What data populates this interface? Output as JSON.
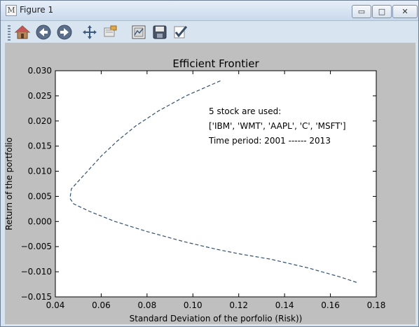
{
  "window": {
    "title": "Figure 1",
    "controls": {
      "minimize": "▭",
      "maximize": "□",
      "close": "✕"
    }
  },
  "toolbar": {
    "tools": [
      {
        "name": "home-icon"
      },
      {
        "name": "back-arrow-icon"
      },
      {
        "name": "forward-arrow-icon"
      },
      {
        "name": "pan-icon"
      },
      {
        "name": "zoom-icon"
      },
      {
        "name": "subplots-config-icon"
      },
      {
        "name": "save-icon"
      },
      {
        "name": "edit-parameters-icon"
      }
    ]
  },
  "colors": {
    "figure_background": "#bfbfbf",
    "axes_background": "#ffffff",
    "line": "#34506c"
  },
  "chart_data": {
    "type": "line",
    "title": "Efficient Frontier",
    "xlabel": "Standard Deviation of the porfolio (Risk))",
    "ylabel": "Return of the portfolio",
    "xlim": [
      0.04,
      0.18
    ],
    "ylim": [
      -0.015,
      0.03
    ],
    "xticks": [
      "0.04",
      "0.06",
      "0.08",
      "0.10",
      "0.12",
      "0.14",
      "0.16",
      "0.18"
    ],
    "yticks": [
      "0.030",
      "0.025",
      "0.020",
      "0.015",
      "0.010",
      "0.005",
      "0.000",
      "−0.005",
      "−0.010",
      "−0.015"
    ],
    "grid": false,
    "line_style": "dashed",
    "annotation": [
      "5 stock are used:",
      " ['IBM', 'WMT', 'AAPL', 'C', 'MSFT']",
      "Time period: 2001 ------ 2013"
    ],
    "series": [
      {
        "x": [
          0.112,
          0.097,
          0.085,
          0.075,
          0.067,
          0.06,
          0.054,
          0.05,
          0.047,
          0.0465,
          0.0465,
          0.048,
          0.055,
          0.066,
          0.08,
          0.096,
          0.11,
          0.121,
          0.134,
          0.15,
          0.164,
          0.172
        ],
        "y": [
          0.028,
          0.025,
          0.022,
          0.019,
          0.016,
          0.013,
          0.01,
          0.008,
          0.0065,
          0.005,
          0.0045,
          0.0035,
          0.002,
          0.0,
          -0.002,
          -0.004,
          -0.0055,
          -0.0065,
          -0.0075,
          -0.0092,
          -0.011,
          -0.0122
        ]
      }
    ]
  }
}
